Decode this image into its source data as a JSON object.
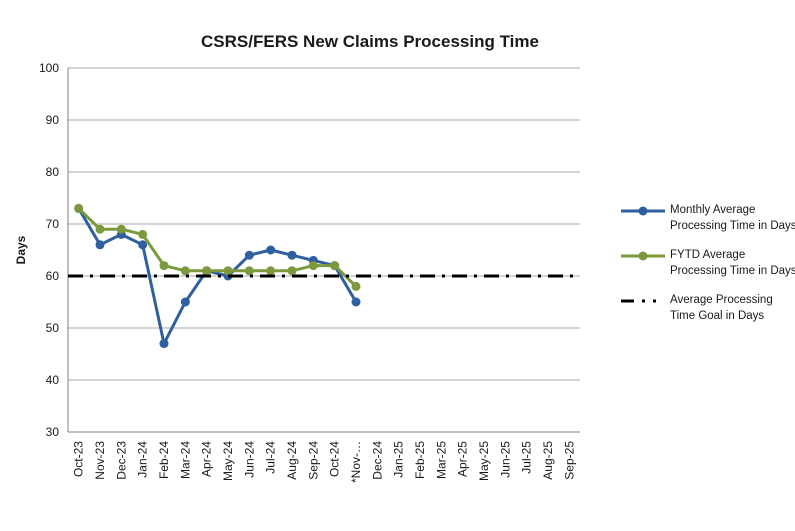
{
  "chart_data": {
    "type": "line",
    "title": "CSRS/FERS New Claims Processing Time",
    "ylabel": "Days",
    "ylim": [
      30,
      100
    ],
    "yticks": [
      30,
      40,
      50,
      60,
      70,
      80,
      90,
      100
    ],
    "grid": "horizontal-gridlines",
    "legend_position": "right",
    "categories": [
      "Oct-23",
      "Nov-23",
      "Dec-23",
      "Jan-24",
      "Feb-24",
      "Mar-24",
      "Apr-24",
      "May-24",
      "Jun-24",
      "Jul-24",
      "Aug-24",
      "Sep-24",
      "Oct-24",
      "*Nov-…",
      "Dec-24",
      "Jan-25",
      "Feb-25",
      "Mar-25",
      "Apr-25",
      "May-25",
      "Jun-25",
      "Jul-25",
      "Aug-25",
      "Sep-25"
    ],
    "series": [
      {
        "name": "Monthly Average Processing Time in Days",
        "name_lines": [
          "Monthly Average",
          "Processing Time in Days"
        ],
        "color": "#2E5F9E",
        "values": [
          73,
          66,
          68,
          66,
          47,
          55,
          61,
          60,
          64,
          65,
          64,
          63,
          62,
          55,
          null,
          null,
          null,
          null,
          null,
          null,
          null,
          null,
          null,
          null
        ]
      },
      {
        "name": "FYTD Average Processing Time in Days",
        "name_lines": [
          "FYTD Average",
          "Processing Time in Days"
        ],
        "color": "#7C9A3D",
        "values": [
          73,
          69,
          69,
          68,
          62,
          61,
          61,
          61,
          61,
          61,
          61,
          62,
          62,
          58,
          null,
          null,
          null,
          null,
          null,
          null,
          null,
          null,
          null,
          null
        ]
      }
    ],
    "goal_line": {
      "name": "Average Processing Time Goal in Days",
      "name_lines": [
        "Average Processing",
        "Time Goal in Days"
      ],
      "value": 60,
      "color": "#000000"
    },
    "colors": {
      "gridline": "#A8A8A8",
      "axis": "#808080",
      "tick_text": "#1A1A1A"
    }
  }
}
